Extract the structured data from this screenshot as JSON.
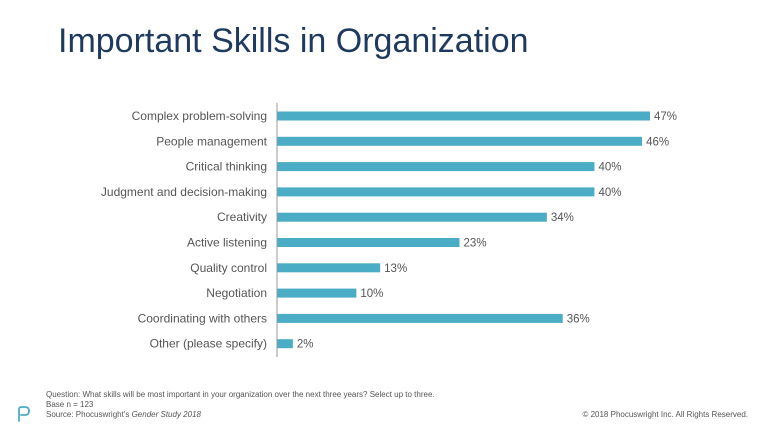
{
  "page": {
    "title": "Important Skills in Organization"
  },
  "footer": {
    "question": "Question: What skills will be most important in your organization over the next three years? Select up to three.",
    "base": "Base n = 123",
    "source_prefix": "Source: Phocuswright's ",
    "source_title": "Gender Study 2018",
    "copyright": "© 2018 Phocuswright Inc. All Rights Reserved."
  },
  "logo": {
    "icon": "phocuswright-logo-icon",
    "color": "#4bacc6"
  },
  "colors": {
    "bar": "#4bacc6",
    "axis": "#999999",
    "title": "#1f3a5f",
    "text": "#555555"
  },
  "chart_data": {
    "type": "bar",
    "orientation": "horizontal",
    "categories": [
      "Complex problem-solving",
      "People management",
      "Critical thinking",
      "Judgment and decision-making",
      "Creativity",
      "Active listening",
      "Quality control",
      "Negotiation",
      "Coordinating with others",
      "Other (please specify)"
    ],
    "values": [
      47,
      46,
      40,
      40,
      34,
      23,
      13,
      10,
      36,
      2
    ],
    "value_labels": [
      "47%",
      "46%",
      "40%",
      "40%",
      "34%",
      "23%",
      "13%",
      "10%",
      "36%",
      "2%"
    ],
    "unit": "%",
    "xlim": [
      0,
      47
    ],
    "grid": false,
    "legend": "none"
  }
}
